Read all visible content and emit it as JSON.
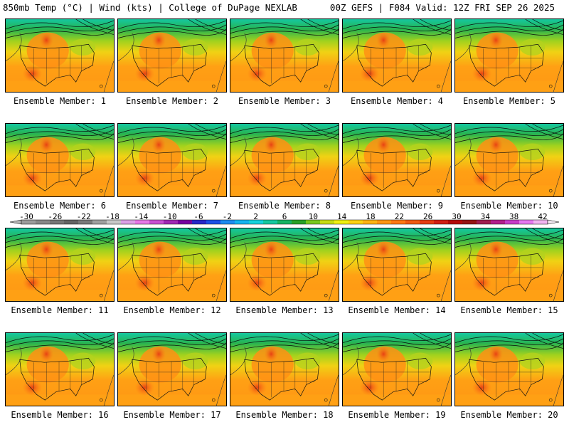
{
  "header": {
    "left": "850mb Temp (°C) | Wind (kts) | College of DuPage NEXLAB",
    "right": "00Z GEFS | F084 Valid: 12Z FRI SEP 26 2025"
  },
  "panels": [
    {
      "label": "Ensemble Member: 1"
    },
    {
      "label": "Ensemble Member: 2"
    },
    {
      "label": "Ensemble Member: 3"
    },
    {
      "label": "Ensemble Member: 4"
    },
    {
      "label": "Ensemble Member: 5"
    },
    {
      "label": "Ensemble Member: 6"
    },
    {
      "label": "Ensemble Member: 7"
    },
    {
      "label": "Ensemble Member: 8"
    },
    {
      "label": "Ensemble Member: 9"
    },
    {
      "label": "Ensemble Member: 10"
    },
    {
      "label": "Ensemble Member: 11"
    },
    {
      "label": "Ensemble Member: 12"
    },
    {
      "label": "Ensemble Member: 13"
    },
    {
      "label": "Ensemble Member: 14"
    },
    {
      "label": "Ensemble Member: 15"
    },
    {
      "label": "Ensemble Member: 16"
    },
    {
      "label": "Ensemble Member: 17"
    },
    {
      "label": "Ensemble Member: 18"
    },
    {
      "label": "Ensemble Member: 19"
    },
    {
      "label": "Ensemble Member: 20"
    }
  ],
  "colorbar": {
    "labels": [
      "-30",
      "-26",
      "-22",
      "-18",
      "-14",
      "-10",
      "-6",
      "-2",
      "2",
      "6",
      "10",
      "14",
      "18",
      "22",
      "26",
      "30",
      "34",
      "38",
      "42"
    ],
    "colors": [
      "#9c9c9c",
      "#888888",
      "#767676",
      "#646464",
      "#7a7a7a",
      "#a0a0a0",
      "#c8c8c8",
      "#dca0e6",
      "#e678e6",
      "#c850d2",
      "#a028b4",
      "#7800a0",
      "#2828c8",
      "#1e50e6",
      "#1e8cf0",
      "#14b4f0",
      "#14d2dc",
      "#14c8a0",
      "#14b464",
      "#28a028",
      "#78c81e",
      "#c8dc14",
      "#f0f014",
      "#ffd214",
      "#ffb414",
      "#ff9614",
      "#ff7814",
      "#f05a14",
      "#e63c14",
      "#d21e14",
      "#b40a0a",
      "#961414",
      "#a01e50",
      "#b41e8c",
      "#c83cc8",
      "#e678f0",
      "#f0b4f0"
    ]
  }
}
